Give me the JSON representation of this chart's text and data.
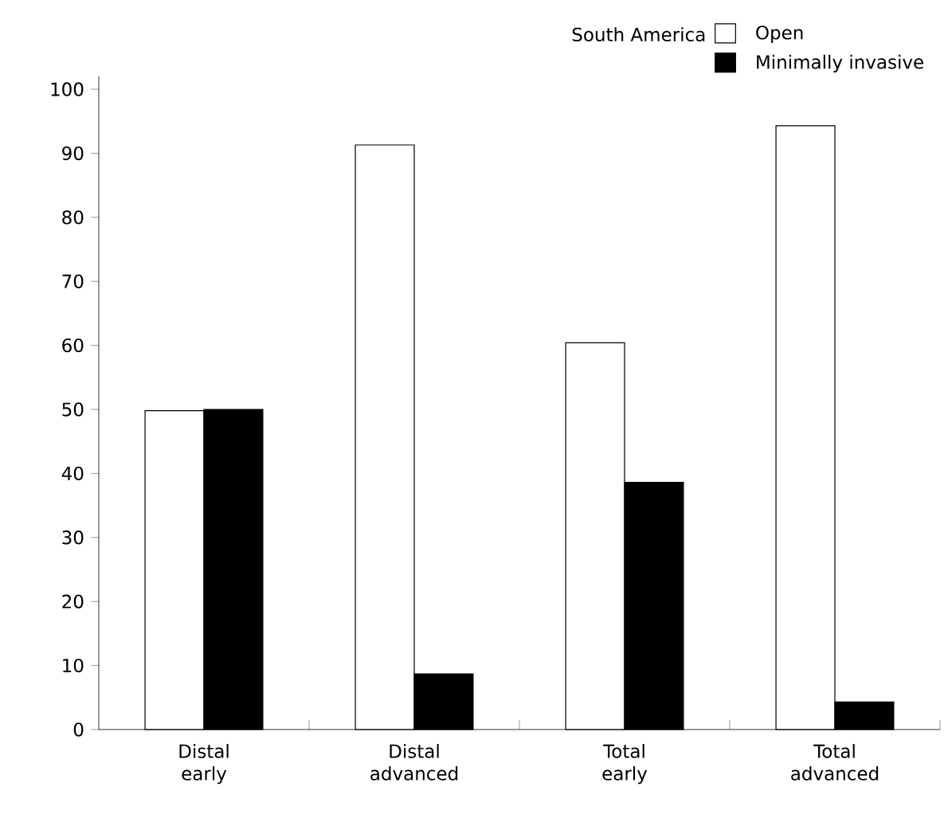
{
  "chart_data": {
    "type": "bar",
    "categories": [
      "Distal early",
      "Distal advanced",
      "Total early",
      "Total advanced"
    ],
    "series": [
      {
        "name": "Open",
        "color": "#ffffff",
        "values": [
          49.8,
          91.3,
          60.4,
          94.3
        ]
      },
      {
        "name": "Minimally invasive",
        "color": "#000000",
        "values": [
          50,
          8.7,
          38.6,
          4.3
        ]
      }
    ],
    "legend_title": "South America",
    "legend": "top right",
    "ylim": [
      0,
      102
    ],
    "yticks": [
      0,
      10,
      20,
      30,
      40,
      50,
      60,
      70,
      80,
      90,
      100
    ]
  }
}
